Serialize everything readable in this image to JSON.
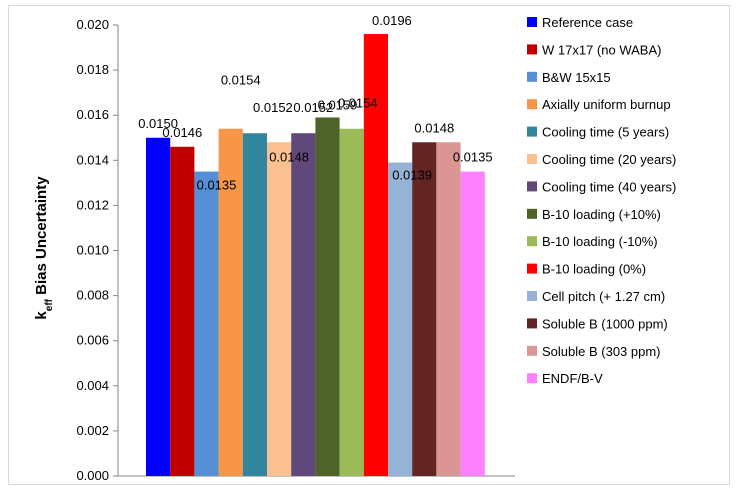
{
  "chart_data": {
    "type": "bar",
    "ylabel_main": "k",
    "ylabel_sub": "eff",
    "ylabel_rest": " Bias Uncertainty",
    "ylim": [
      0.0,
      0.02
    ],
    "yticks": [
      "0.000",
      "0.002",
      "0.004",
      "0.006",
      "0.008",
      "0.010",
      "0.012",
      "0.014",
      "0.016",
      "0.018",
      "0.020"
    ],
    "grid": false,
    "legend_position": "right",
    "series": [
      {
        "name": "Reference case",
        "value": 0.015,
        "label": "0.0150",
        "color": "#0000FF"
      },
      {
        "name": "W 17x17 (no WABA)",
        "value": 0.0146,
        "label": "0.0146",
        "color": "#C00000"
      },
      {
        "name": "B&W 15x15",
        "value": 0.0135,
        "label": "0.0135",
        "color": "#558ED5"
      },
      {
        "name": "Axially uniform burnup",
        "value": 0.0154,
        "label": "0.0154",
        "color": "#F79646"
      },
      {
        "name": "Cooling time (5 years)",
        "value": 0.0152,
        "label": "0.0152",
        "color": "#31859C"
      },
      {
        "name": "Cooling time (20 years)",
        "value": 0.0148,
        "label": "0.0148",
        "color": "#FAC090"
      },
      {
        "name": "Cooling time (40 years)",
        "value": 0.0152,
        "label": "0.0152",
        "color": "#60497A"
      },
      {
        "name": "B-10 loading (+10%)",
        "value": 0.0159,
        "label": "0.0159",
        "color": "#4F6228"
      },
      {
        "name": "B-10 loading (-10%)",
        "value": 0.0154,
        "label": "0.0154",
        "color": "#9BBB59"
      },
      {
        "name": "B-10 loading (0%)",
        "value": 0.0196,
        "label": "0.0196",
        "color": "#FF0000"
      },
      {
        "name": "Cell pitch (+ 1.27 cm)",
        "value": 0.0139,
        "label": "0.0139",
        "color": "#95B3D7"
      },
      {
        "name": "Soluble B (1000 ppm)",
        "value": 0.0148,
        "label": "0.0148",
        "color": "#632523"
      },
      {
        "name": "Soluble B (303 ppm)",
        "value": 0.0148,
        "label": "0.0148",
        "color": "#D99694"
      },
      {
        "name": "ENDF/B-V",
        "value": 0.0135,
        "label": "0.0135",
        "color": "#FF80FF"
      }
    ]
  }
}
